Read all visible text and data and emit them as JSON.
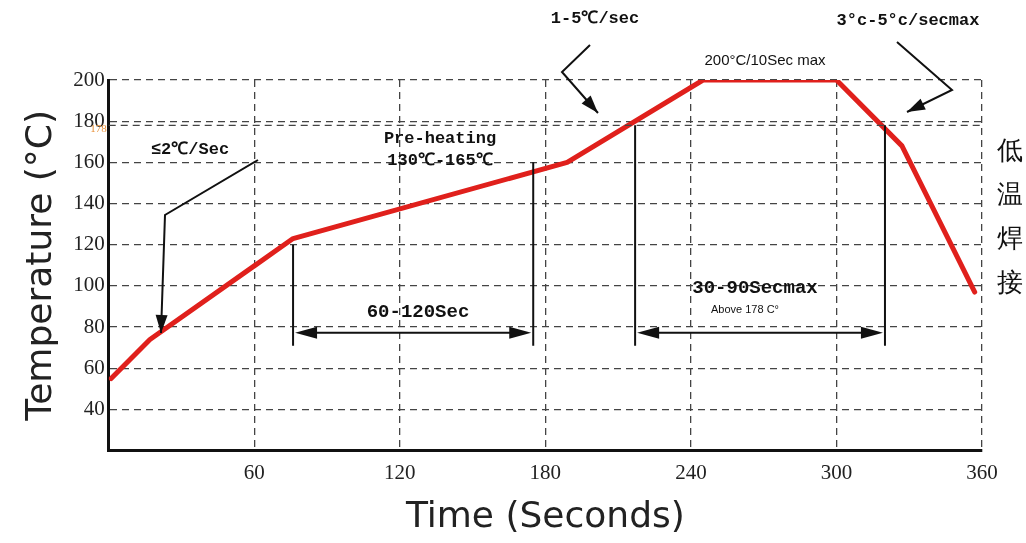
{
  "chart_data": {
    "type": "line",
    "xlabel": "Time (Seconds)",
    "ylabel": "Temperature (°C)",
    "series": [
      {
        "color": "#e0201c",
        "x": [
          1,
          17,
          76,
          189,
          245,
          300,
          327,
          357
        ],
        "values": [
          55,
          74,
          123,
          160,
          200,
          200,
          168,
          97
        ]
      }
    ],
    "xlim": [
      0,
      360
    ],
    "xticks": [
      60,
      120,
      180,
      240,
      300,
      360
    ],
    "ylim": [
      20,
      200
    ],
    "yticks": [
      40,
      60,
      80,
      100,
      120,
      140,
      160,
      180,
      200
    ],
    "grid": true,
    "legend": false,
    "marker": "none",
    "line_style": "solid",
    "ref_lines": [
      {
        "axis": "y",
        "value": 178,
        "label": "178",
        "line_style": "dashed"
      }
    ],
    "annotations": [
      "≤2℃/Sec",
      "Pre-heating\n130℃-165℃",
      "60-120Sec",
      "1-5℃/sec",
      "200°C/10Sec max",
      "3°c-5°c/secmax",
      "30-90Secmax",
      "Above 178 C°",
      "低温焊接"
    ]
  }
}
